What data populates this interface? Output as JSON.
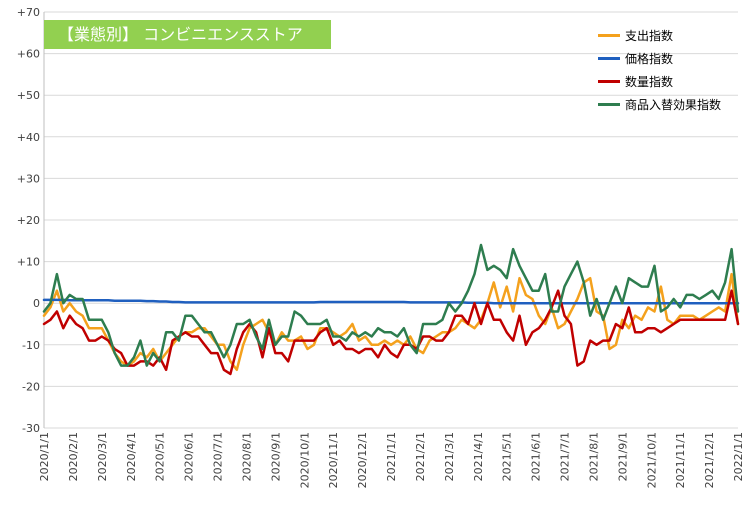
{
  "colors": {
    "spend": "#f4a11d",
    "price": "#1f5fbf",
    "quantity": "#c00000",
    "mix": "#2e7d4f",
    "title_bg": "#92d050",
    "grid": "#d9d9d9"
  },
  "chart_data": {
    "type": "line",
    "title": "【業態別】 コンビニエンスストア",
    "xlabel": "",
    "ylabel": "",
    "ylim": [
      -30,
      70
    ],
    "yticks": [
      70,
      60,
      50,
      40,
      30,
      20,
      10,
      0,
      -10,
      -20,
      -30
    ],
    "ytick_labels": [
      "+70",
      "+60",
      "+50",
      "+40",
      "+30",
      "+20",
      "+10",
      "0",
      "-10",
      "-20",
      "-30"
    ],
    "xticks": [
      "2020/1/1",
      "2020/2/1",
      "2020/3/1",
      "2020/4/1",
      "2020/5/1",
      "2020/6/1",
      "2020/7/1",
      "2020/8/1",
      "2020/9/1",
      "2020/10/1",
      "2020/11/1",
      "2020/12/1",
      "2021/1/1",
      "2021/2/1",
      "2021/3/1",
      "2021/4/1",
      "2021/5/1",
      "2021/6/1",
      "2021/7/1",
      "2021/8/1",
      "2021/9/1",
      "2021/10/1",
      "2021/11/1",
      "2021/12/1",
      "2022/1/1"
    ],
    "grid": true,
    "legend_position": "top-right",
    "series": [
      {
        "name": "支出指数",
        "key": "spend",
        "values": [
          -3,
          -1,
          3,
          -2,
          0,
          -2,
          -3,
          -6,
          -6,
          -6,
          -9,
          -12,
          -14,
          -15,
          -14,
          -12,
          -13,
          -11,
          -14,
          -12,
          -10,
          -8,
          -7,
          -7,
          -6,
          -6,
          -8,
          -10,
          -10,
          -14,
          -16,
          -10,
          -6,
          -5,
          -4,
          -7,
          -10,
          -7,
          -9,
          -9,
          -8,
          -11,
          -10,
          -6,
          -6,
          -7,
          -8,
          -7,
          -5,
          -9,
          -8,
          -10,
          -10,
          -9,
          -10,
          -9,
          -10,
          -8,
          -11,
          -12,
          -9,
          -8,
          -7,
          -7,
          -6,
          -4,
          -5,
          -6,
          -4,
          0,
          5,
          -1,
          4,
          -2,
          6,
          2,
          1,
          -3,
          -5,
          -1,
          -6,
          -5,
          -2,
          1,
          5,
          6,
          -2,
          -3,
          -11,
          -10,
          -4,
          -6,
          -3,
          -4,
          -1,
          -2,
          4,
          -4,
          -5,
          -3,
          -3,
          -3,
          -4,
          -3,
          -2,
          -1,
          -2,
          7,
          -5
        ]
      },
      {
        "name": "価格指数",
        "key": "price",
        "values": [
          0.8,
          0.8,
          0.8,
          0.8,
          0.7,
          0.7,
          0.7,
          0.7,
          0.7,
          0.7,
          0.7,
          0.6,
          0.6,
          0.6,
          0.6,
          0.6,
          0.5,
          0.5,
          0.4,
          0.4,
          0.3,
          0.3,
          0.2,
          0.2,
          0.2,
          0.2,
          0.2,
          0.2,
          0.2,
          0.2,
          0.2,
          0.2,
          0.2,
          0.2,
          0.2,
          0.2,
          0.2,
          0.2,
          0.2,
          0.2,
          0.2,
          0.2,
          0.2,
          0.3,
          0.3,
          0.3,
          0.3,
          0.3,
          0.3,
          0.3,
          0.3,
          0.3,
          0.3,
          0.3,
          0.3,
          0.3,
          0.3,
          0.2,
          0.2,
          0.2,
          0.2,
          0.2,
          0.2,
          0.2,
          0.2,
          0.2,
          0.1,
          0.1,
          0.1,
          0.1,
          0,
          0,
          0,
          0,
          0,
          0,
          0,
          0,
          0,
          0,
          0,
          0,
          0,
          0,
          0,
          0,
          0,
          0,
          0,
          0,
          0,
          0,
          0,
          0,
          0,
          0,
          0,
          0,
          0,
          0,
          0,
          0,
          0,
          0,
          0,
          0,
          0,
          0,
          0
        ]
      },
      {
        "name": "数量指数",
        "key": "quantity",
        "values": [
          -5,
          -4,
          -2,
          -6,
          -3,
          -5,
          -6,
          -9,
          -9,
          -8,
          -9,
          -11,
          -12,
          -15,
          -15,
          -14,
          -14,
          -15,
          -13,
          -16,
          -9,
          -8,
          -7,
          -8,
          -8,
          -10,
          -12,
          -12,
          -16,
          -17,
          -11,
          -7,
          -5,
          -7,
          -13,
          -6,
          -12,
          -12,
          -14,
          -9,
          -9,
          -9,
          -9,
          -7,
          -6,
          -10,
          -9,
          -11,
          -11,
          -12,
          -11,
          -11,
          -13,
          -10,
          -12,
          -13,
          -10,
          -10,
          -11,
          -8,
          -8,
          -9,
          -9,
          -7,
          -3,
          -3,
          -5,
          0,
          -5,
          0,
          -4,
          -4,
          -7,
          -9,
          -3,
          -10,
          -7,
          -6,
          -4,
          -1,
          3,
          -3,
          -5,
          -15,
          -14,
          -9,
          -10,
          -9,
          -9,
          -5,
          -6,
          -1,
          -7,
          -7,
          -6,
          -6,
          -7,
          -6,
          -5,
          -4,
          -4,
          -4,
          -4,
          -4,
          -4,
          -4,
          -4,
          3,
          -5
        ]
      },
      {
        "name": "商品入替効果指数",
        "key": "mix",
        "values": [
          -2,
          0,
          7,
          0,
          2,
          1,
          1,
          -4,
          -4,
          -4,
          -7,
          -12,
          -15,
          -15,
          -13,
          -9,
          -15,
          -12,
          -14,
          -7,
          -7,
          -9,
          -3,
          -3,
          -5,
          -7,
          -7,
          -10,
          -13,
          -10,
          -5,
          -5,
          -4,
          -8,
          -11,
          -4,
          -10,
          -8,
          -8,
          -2,
          -3,
          -5,
          -5,
          -5,
          -4,
          -8,
          -8,
          -9,
          -7,
          -8,
          -7,
          -8,
          -6,
          -7,
          -7,
          -8,
          -6,
          -10,
          -12,
          -5,
          -5,
          -5,
          -4,
          0,
          -2,
          0,
          3,
          7,
          14,
          8,
          9,
          8,
          6,
          13,
          9,
          6,
          3,
          3,
          7,
          -2,
          -2,
          4,
          7,
          10,
          5,
          -3,
          1,
          -4,
          0,
          4,
          0,
          6,
          5,
          4,
          4,
          9,
          -2,
          -1,
          1,
          -1,
          2,
          2,
          1,
          2,
          3,
          1,
          5,
          13,
          -2
        ]
      }
    ]
  }
}
